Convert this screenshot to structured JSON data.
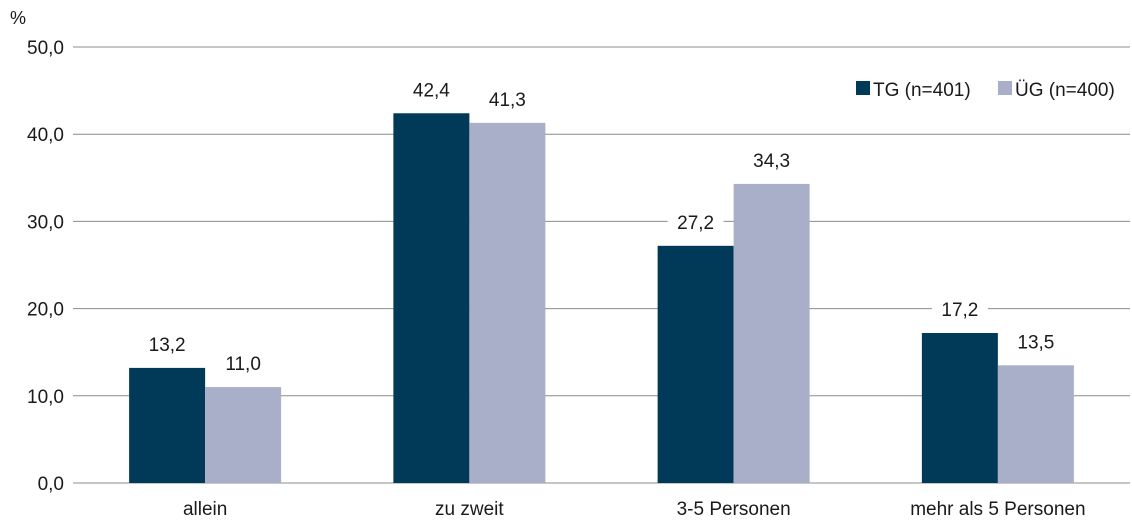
{
  "chart_data": {
    "type": "bar",
    "ylabel": "%",
    "ylim": [
      0,
      50
    ],
    "yticks": [
      "0,0",
      "10,0",
      "20,0",
      "30,0",
      "40,0",
      "50,0"
    ],
    "ytick_values": [
      0,
      10,
      20,
      30,
      40,
      50
    ],
    "grid": true,
    "legend_position": "top-right",
    "categories": [
      "allein",
      "zu zweit",
      "3-5 Personen",
      "mehr als 5 Personen"
    ],
    "series": [
      {
        "name": "TG (n=401)",
        "color": "#003a58",
        "values": [
          13.2,
          42.4,
          27.2,
          17.2
        ],
        "labels": [
          "13,2",
          "42,4",
          "27,2",
          "17,2"
        ]
      },
      {
        "name": "ÜG (n=400)",
        "color": "#a9afc8",
        "values": [
          11.0,
          41.3,
          34.3,
          13.5
        ],
        "labels": [
          "11,0",
          "41,3",
          "34,3",
          "13,5"
        ]
      }
    ]
  }
}
